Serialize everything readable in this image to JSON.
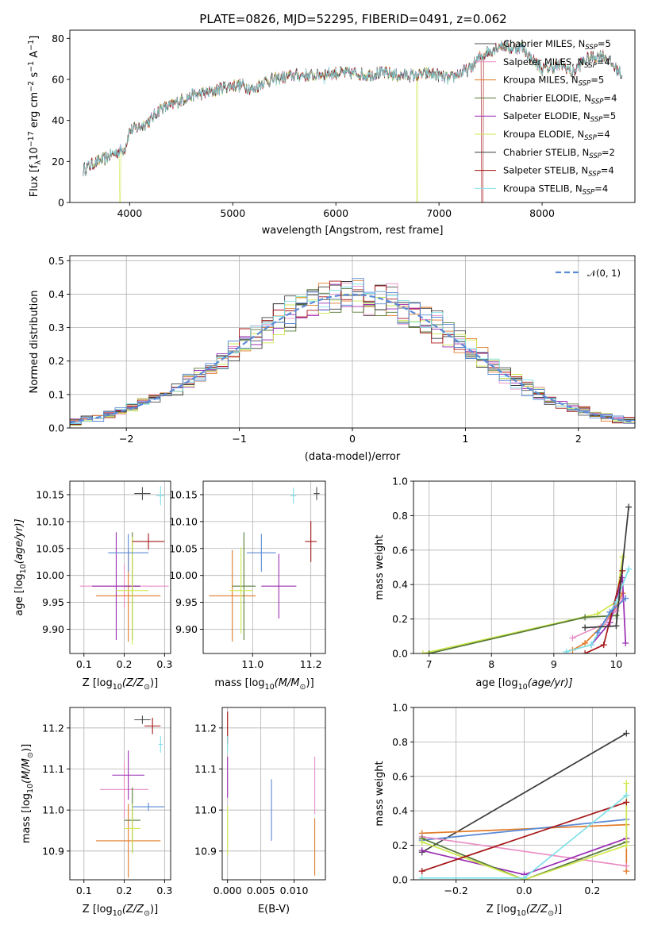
{
  "figure": {
    "title": "PLATE=0826, MJD=52295, FIBERID=0491, z=0.062"
  },
  "colors": {
    "Chabrier MILES": "#4d4d4d",
    "Salpeter MILES": "#e88cc3",
    "Kroupa MILES": "#e07b28",
    "Chabrier ELODIE": "#567a37",
    "Salpeter ELODIE": "#9b2eb3",
    "Kroupa ELODIE": "#cfe84f",
    "Chabrier STELIB": "#3b3b3b",
    "Salpeter STELIB": "#a51616",
    "Kroupa STELIB": "#7ee0e8",
    "gauss": "#5a8ad6"
  },
  "chart_data": [
    {
      "id": "spectrum",
      "type": "line",
      "xlabel": "wavelength [Angstrom, rest frame]",
      "ylabel_parts": [
        "Flux [f",
        "λ",
        "10",
        "−17",
        " erg cm",
        "−2",
        " s",
        "−1",
        " A",
        "−1",
        "]"
      ],
      "xlim": [
        3420,
        8900
      ],
      "ylim": [
        0,
        84
      ],
      "xticks": [
        "4000",
        "5000",
        "6000",
        "7000",
        "8000"
      ],
      "yticks": [
        "0",
        "20",
        "40",
        "60",
        "80"
      ],
      "grid": false,
      "legend_position": "top-right",
      "legend": [
        {
          "name": "Chabrier MILES",
          "nssp": "5"
        },
        {
          "name": "Salpeter MILES",
          "nssp": "4"
        },
        {
          "name": "Kroupa MILES",
          "nssp": "5"
        },
        {
          "name": "Chabrier ELODIE",
          "nssp": "4"
        },
        {
          "name": "Salpeter ELODIE",
          "nssp": "5"
        },
        {
          "name": "Kroupa ELODIE",
          "nssp": "4"
        },
        {
          "name": "Chabrier STELIB",
          "nssp": "2"
        },
        {
          "name": "Salpeter STELIB",
          "nssp": "4"
        },
        {
          "name": "Kroupa STELIB",
          "nssp": "4"
        }
      ],
      "legend_label_template": {
        "nssp_prefix": "N",
        "nssp_sub": "SSP",
        "eq": "="
      },
      "continuum": {
        "x": [
          3550,
          3650,
          3750,
          3850,
          3950,
          4000,
          4100,
          4200,
          4300,
          4400,
          4500,
          4600,
          4700,
          4800,
          4900,
          5000,
          5100,
          5200,
          5300,
          5400,
          5500,
          5600,
          5700,
          5800,
          5900,
          6000,
          6100,
          6200,
          6300,
          6400,
          6500,
          6600,
          6700,
          6800,
          6900,
          7000,
          7100,
          7200,
          7300,
          7400,
          7500,
          7600,
          7700,
          7800,
          7900,
          8000,
          8100,
          8200,
          8300,
          8400,
          8500,
          8600,
          8700,
          8780
        ],
        "y": [
          16,
          19,
          21,
          24,
          26,
          35,
          37,
          40,
          46,
          47,
          50,
          52,
          53,
          54,
          56,
          57,
          57,
          55,
          59,
          60,
          61,
          62,
          62,
          62,
          63,
          63,
          63,
          63,
          62,
          63,
          63,
          62,
          62,
          62,
          63,
          62,
          60,
          63,
          65,
          71,
          74,
          77,
          75,
          76,
          70,
          65,
          66,
          67,
          63,
          69,
          71,
          72,
          66,
          62
        ]
      },
      "dips": [
        {
          "series": "Kroupa ELODIE",
          "x": 3905,
          "y": 0
        },
        {
          "series": "Kroupa STELIB",
          "x": 5890,
          "y": 58
        },
        {
          "series": "Kroupa ELODIE",
          "x": 6785,
          "y": 0
        },
        {
          "series": "Salpeter STELIB",
          "x": 7420,
          "y": 0
        }
      ]
    },
    {
      "id": "residuals",
      "type": "histogram",
      "xlabel": "(data-model)/error",
      "ylabel": "Normed distribution",
      "xlim": [
        -2.5,
        2.5
      ],
      "ylim": [
        0,
        0.515
      ],
      "xticks": [
        {
          "v": -2,
          "label": "−2"
        },
        {
          "v": -1,
          "label": "−1"
        },
        {
          "v": 0,
          "label": "0"
        },
        {
          "v": 1,
          "label": "1"
        },
        {
          "v": 2,
          "label": "2"
        }
      ],
      "yticks": [
        {
          "v": 0,
          "label": "0.0"
        },
        {
          "v": 0.1,
          "label": "0.1"
        },
        {
          "v": 0.2,
          "label": "0.2"
        },
        {
          "v": 0.3,
          "label": "0.3"
        },
        {
          "v": 0.4,
          "label": "0.4"
        },
        {
          "v": 0.5,
          "label": "0.5"
        }
      ],
      "grid": true,
      "bin_width": 0.1,
      "reference": {
        "name_parts": [
          "𝒩",
          "(0, 1)"
        ],
        "mean": 0,
        "sigma": 1,
        "style": "dashed"
      }
    },
    {
      "id": "age-vs-Z",
      "type": "errorbar",
      "xlabel_parts": [
        "Z [log",
        "10",
        "(Z/Z",
        "⊙",
        ")]"
      ],
      "ylabel_parts": [
        "age  [log",
        "10",
        "(age/yr)]"
      ],
      "xlim": [
        0.065,
        0.315
      ],
      "ylim": [
        9.855,
        10.175
      ],
      "xticks": [
        "0.1",
        "0.2",
        "0.3"
      ],
      "yticks": [
        "9.90",
        "9.95",
        "10.00",
        "10.05",
        "10.10",
        "10.15"
      ],
      "xtickvals": [
        0.1,
        0.2,
        0.3
      ],
      "ytickvals": [
        9.9,
        9.95,
        10.0,
        10.05,
        10.1,
        10.15
      ],
      "grid": true,
      "points": [
        {
          "s": "Chabrier MILES",
          "x": 0.245,
          "xe": 0.02,
          "y": 10.152,
          "ye": 0.012
        },
        {
          "s": "Salpeter MILES",
          "x": 0.2,
          "xe": 0.11,
          "y": 9.98,
          "ye": 0.04
        },
        {
          "s": "Kroupa MILES",
          "x": 0.21,
          "xe": 0.08,
          "y": 9.962,
          "ye": 0.085
        },
        {
          "s": "Chabrier ELODIE",
          "x": 0.22,
          "xe": 0.02,
          "y": 9.98,
          "ye": 0.1
        },
        {
          "s": "Salpeter ELODIE",
          "x": 0.18,
          "xe": 0.06,
          "y": 9.98,
          "ye": 0.1
        },
        {
          "s": "Kroupa ELODIE",
          "x": 0.22,
          "xe": 0.04,
          "y": 9.972,
          "ye": 0.1
        },
        {
          "s": "Salpeter STELIB",
          "x": 0.26,
          "xe": 0.04,
          "y": 10.063,
          "ye": 0.015
        },
        {
          "s": "Kroupa STELIB",
          "x": 0.29,
          "xe": 0.01,
          "y": 10.148,
          "ye": 0.018
        },
        {
          "s": "gauss",
          "x": 0.21,
          "xe": 0.05,
          "y": 10.042,
          "ye": 0.035
        }
      ]
    },
    {
      "id": "age-vs-mass",
      "type": "errorbar",
      "xlabel_parts": [
        "mass [log",
        "10",
        "(M/M",
        "⊙",
        ")]"
      ],
      "ylabel": "",
      "xlim": [
        10.83,
        11.25
      ],
      "ylim": [
        9.855,
        10.175
      ],
      "xticks": [
        "11.0",
        "11.2"
      ],
      "yticks": [
        "9.90",
        "9.95",
        "10.00",
        "10.05",
        "10.10",
        "10.15"
      ],
      "xtickvals": [
        11.0,
        11.2
      ],
      "ytickvals": [
        9.9,
        9.95,
        10.0,
        10.05,
        10.1,
        10.15
      ],
      "grid": true,
      "points": [
        {
          "s": "Chabrier MILES",
          "x": 11.22,
          "xe": 0.01,
          "y": 10.152,
          "ye": 0.012
        },
        {
          "s": "Kroupa MILES",
          "x": 10.93,
          "xe": 0.08,
          "y": 9.962,
          "ye": 0.085
        },
        {
          "s": "Chabrier ELODIE",
          "x": 10.97,
          "xe": 0.04,
          "y": 9.98,
          "ye": 0.1
        },
        {
          "s": "Salpeter ELODIE",
          "x": 11.09,
          "xe": 0.06,
          "y": 9.98,
          "ye": 0.06
        },
        {
          "s": "Kroupa ELODIE",
          "x": 10.96,
          "xe": 0.04,
          "y": 9.972,
          "ye": 0.08
        },
        {
          "s": "Salpeter STELIB",
          "x": 11.2,
          "xe": 0.02,
          "y": 10.063,
          "ye": 0.038
        },
        {
          "s": "Kroupa STELIB",
          "x": 11.14,
          "xe": 0.01,
          "y": 10.148,
          "ye": 0.015
        },
        {
          "s": "gauss",
          "x": 11.03,
          "xe": 0.05,
          "y": 10.042,
          "ye": 0.035
        }
      ]
    },
    {
      "id": "mass-weight-vs-age",
      "type": "line",
      "xlabel_parts": [
        "age  [log",
        "10",
        "(age/yr)]"
      ],
      "ylabel": "mass weight",
      "xlim": [
        6.75,
        10.3
      ],
      "ylim": [
        0,
        1
      ],
      "xticks": [
        "7",
        "8",
        "9",
        "10"
      ],
      "yticks": [
        "0.0",
        "0.2",
        "0.4",
        "0.6",
        "0.8",
        "1.0"
      ],
      "xtickvals": [
        7,
        8,
        9,
        10
      ],
      "ytickvals": [
        0,
        0.2,
        0.4,
        0.6,
        0.8,
        1.0
      ],
      "grid": true,
      "series": [
        {
          "s": "Kroupa ELODIE",
          "x": [
            6.9,
            9.7,
            10.0,
            10.1
          ],
          "y": [
            0.0,
            0.23,
            0.3,
            0.56
          ]
        },
        {
          "s": "Chabrier ELODIE",
          "x": [
            7.0,
            9.5,
            10.0
          ],
          "y": [
            0.0,
            0.21,
            0.22
          ]
        },
        {
          "s": "Kroupa MILES",
          "x": [
            9.3,
            9.5,
            9.8,
            10.0,
            10.1
          ],
          "y": [
            0.02,
            0.06,
            0.17,
            0.27,
            0.35
          ]
        },
        {
          "s": "Salpeter MILES",
          "x": [
            9.3,
            9.8,
            10.0,
            10.1
          ],
          "y": [
            0.09,
            0.17,
            0.25,
            0.32
          ]
        },
        {
          "s": "Salpeter ELODIE",
          "x": [
            9.6,
            9.9,
            10.1,
            10.15
          ],
          "y": [
            0.05,
            0.18,
            0.44,
            0.06
          ]
        },
        {
          "s": "Salpeter STELIB",
          "x": [
            9.5,
            9.8,
            10.1
          ],
          "y": [
            0.0,
            0.05,
            0.48
          ]
        },
        {
          "s": "Kroupa STELIB",
          "x": [
            9.2,
            9.6,
            10.0,
            10.2
          ],
          "y": [
            0.01,
            0.05,
            0.3,
            0.49
          ]
        },
        {
          "s": "gauss",
          "x": [
            9.7,
            9.9,
            10.15
          ],
          "y": [
            0.12,
            0.24,
            0.32
          ]
        },
        {
          "s": "Chabrier STELIB",
          "x": [
            9.5,
            10.0,
            10.2
          ],
          "y": [
            0.15,
            0.16,
            0.85
          ]
        }
      ]
    },
    {
      "id": "mass-vs-Z",
      "type": "errorbar",
      "xlabel_parts": [
        "Z [log",
        "10",
        "(Z/Z",
        "⊙",
        ")]"
      ],
      "ylabel_parts": [
        "mass [log",
        "10",
        "(M/M",
        "⊙",
        ")]"
      ],
      "xlim": [
        0.065,
        0.315
      ],
      "ylim": [
        10.83,
        11.25
      ],
      "xticks": [
        "0.1",
        "0.2",
        "0.3"
      ],
      "yticks": [
        "10.9",
        "11.0",
        "11.1",
        "11.2"
      ],
      "xtickvals": [
        0.1,
        0.2,
        0.3
      ],
      "ytickvals": [
        10.9,
        11.0,
        11.1,
        11.2
      ],
      "grid": true,
      "points": [
        {
          "s": "Chabrier MILES",
          "x": 0.245,
          "xe": 0.02,
          "y": 11.22,
          "ye": 0.01
        },
        {
          "s": "Salpeter MILES",
          "x": 0.2,
          "xe": 0.06,
          "y": 11.05,
          "ye": 0.07
        },
        {
          "s": "Kroupa MILES",
          "x": 0.21,
          "xe": 0.08,
          "y": 10.925,
          "ye": 0.09
        },
        {
          "s": "Chabrier ELODIE",
          "x": 0.22,
          "xe": 0.02,
          "y": 10.975,
          "ye": 0.08
        },
        {
          "s": "Salpeter ELODIE",
          "x": 0.21,
          "xe": 0.04,
          "y": 11.085,
          "ye": 0.06
        },
        {
          "s": "Kroupa ELODIE",
          "x": 0.22,
          "xe": 0.02,
          "y": 10.955,
          "ye": 0.06
        },
        {
          "s": "Salpeter STELIB",
          "x": 0.27,
          "xe": 0.02,
          "y": 11.205,
          "ye": 0.02
        },
        {
          "s": "Kroupa STELIB",
          "x": 0.29,
          "xe": 0.005,
          "y": 11.16,
          "ye": 0.02
        },
        {
          "s": "gauss",
          "x": 0.26,
          "xe": 0.04,
          "y": 11.008,
          "ye": 0.01
        }
      ]
    },
    {
      "id": "mass-vs-EBV",
      "type": "errorbar",
      "xlabel": "E(B-V)",
      "ylabel": "",
      "xlim": [
        -0.0008,
        0.0147
      ],
      "ylim": [
        10.83,
        11.25
      ],
      "xticks": [
        "0.000",
        "0.005",
        "0.010"
      ],
      "yticks": [
        "10.9",
        "11.0",
        "11.1",
        "11.2"
      ],
      "xtickvals": [
        0.0,
        0.005,
        0.01
      ],
      "ytickvals": [
        10.9,
        11.0,
        11.1,
        11.2
      ],
      "grid": true,
      "points": [
        {
          "s": "Salpeter STELIB",
          "x": 0.0,
          "xe": 0,
          "y": 11.2,
          "ye": 0.04
        },
        {
          "s": "Kroupa STELIB",
          "x": 0.0,
          "xe": 0,
          "y": 11.16,
          "ye": 0.02
        },
        {
          "s": "Salpeter ELODIE",
          "x": 0.0,
          "xe": 0,
          "y": 11.08,
          "ye": 0.05
        },
        {
          "s": "Kroupa ELODIE",
          "x": 0.0,
          "xe": 0,
          "y": 10.95,
          "ye": 0.06
        },
        {
          "s": "gauss",
          "x": 0.0066,
          "xe": 0,
          "y": 11.0,
          "ye": 0.075
        },
        {
          "s": "Salpeter MILES",
          "x": 0.0131,
          "xe": 0,
          "y": 11.06,
          "ye": 0.07
        },
        {
          "s": "Kroupa MILES",
          "x": 0.0131,
          "xe": 0,
          "y": 10.91,
          "ye": 0.07
        }
      ]
    },
    {
      "id": "mass-weight-vs-Z",
      "type": "line",
      "xlabel_parts": [
        "Z [log",
        "10",
        "(Z/Z",
        "⊙",
        ")]"
      ],
      "ylabel": "mass weight",
      "xlim": [
        -0.325,
        0.325
      ],
      "ylim": [
        0,
        1
      ],
      "xticks": [
        "−0.2",
        "0.0",
        "0.2"
      ],
      "yticks": [
        "0.0",
        "0.2",
        "0.4",
        "0.6",
        "0.8",
        "1.0"
      ],
      "xtickvals": [
        -0.2,
        0.0,
        0.2
      ],
      "ytickvals": [
        0,
        0.2,
        0.4,
        0.6,
        0.8,
        1.0
      ],
      "grid": true,
      "series": [
        {
          "s": "Chabrier STELIB",
          "x": [
            -0.3,
            0.3
          ],
          "y": [
            0.16,
            0.85
          ]
        },
        {
          "s": "Kroupa MILES",
          "x": [
            -0.3,
            0.3,
            0.3
          ],
          "y": [
            0.27,
            0.32,
            0.05
          ]
        },
        {
          "s": "gauss",
          "x": [
            -0.3,
            0.3
          ],
          "y": [
            0.23,
            0.35
          ]
        },
        {
          "s": "Salpeter MILES",
          "x": [
            -0.3,
            0.3
          ],
          "y": [
            0.25,
            0.08
          ]
        },
        {
          "s": "Salpeter ELODIE",
          "x": [
            -0.3,
            0.0,
            0.3
          ],
          "y": [
            0.17,
            0.03,
            0.24
          ]
        },
        {
          "s": "Chabrier ELODIE",
          "x": [
            -0.3,
            0.0,
            0.3
          ],
          "y": [
            0.24,
            0.0,
            0.22
          ]
        },
        {
          "s": "Kroupa ELODIE",
          "x": [
            -0.3,
            0.0,
            0.3,
            0.3
          ],
          "y": [
            0.22,
            0.0,
            0.2,
            0.56
          ]
        },
        {
          "s": "Salpeter STELIB",
          "x": [
            -0.3,
            0.3
          ],
          "y": [
            0.05,
            0.45
          ]
        },
        {
          "s": "Kroupa STELIB",
          "x": [
            -0.3,
            0.0,
            0.3
          ],
          "y": [
            0.01,
            0.01,
            0.49
          ]
        }
      ]
    }
  ]
}
